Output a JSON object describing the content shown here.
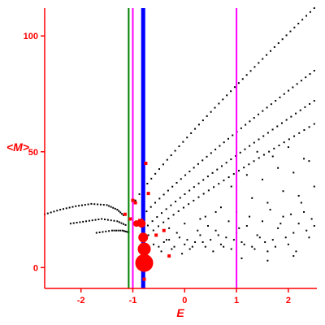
{
  "chart_data": {
    "type": "scatter",
    "title": "",
    "xlabel": "E",
    "ylabel": "<M>",
    "xlim": [
      -2.7,
      2.55
    ],
    "ylim": [
      -9,
      112
    ],
    "x_ticks": [
      -2,
      -1,
      0,
      1,
      2
    ],
    "y_ticks": [
      0,
      50,
      100
    ],
    "grid": false,
    "legend": "none",
    "colors": {
      "axis": "#ff0000",
      "points": "#000000",
      "highlight": "#ff0000",
      "line_green": "#008000",
      "line_magenta": "#ff00ff",
      "line_blue": "#0000ff"
    },
    "vertical_lines": [
      {
        "x": -1.08,
        "color": "#008000",
        "weight": "thin"
      },
      {
        "x": -1.0,
        "color": "#ff00ff",
        "weight": "thin"
      },
      {
        "x": -0.8,
        "color": "#0000ff",
        "weight": "thick"
      },
      {
        "x": 1.0,
        "color": "#ff00ff",
        "weight": "thin"
      }
    ],
    "band_series": [
      {
        "x_start": -0.95,
        "y_start": 29,
        "x_end": 2.5,
        "y_end": 112,
        "n": 46
      },
      {
        "x_start": -0.9,
        "y_start": 20,
        "x_end": 2.5,
        "y_end": 85,
        "n": 42
      },
      {
        "x_start": -0.8,
        "y_start": 16,
        "x_end": 2.5,
        "y_end": 72,
        "n": 38
      },
      {
        "x_start": -0.7,
        "y_start": 14,
        "x_end": 2.5,
        "y_end": 62,
        "n": 34
      }
    ],
    "arc_series": [
      {
        "x": [
          -2.7,
          -2.4,
          -2.1,
          -1.8,
          -1.5,
          -1.3,
          -1.15
        ],
        "y": [
          23,
          25,
          26.5,
          27.5,
          27,
          25,
          22
        ]
      },
      {
        "x": [
          -2.2,
          -1.9,
          -1.6,
          -1.3,
          -1.1
        ],
        "y": [
          19,
          20,
          21,
          20,
          18
        ]
      },
      {
        "x": [
          -1.7,
          -1.4,
          -1.2,
          -1.05
        ],
        "y": [
          15,
          16,
          16,
          15
        ]
      }
    ],
    "cloud_points": {
      "x": [
        -0.6,
        -0.5,
        -0.4,
        -0.3,
        -0.2,
        -0.1,
        0.0,
        0.1,
        0.2,
        0.3,
        0.4,
        0.5,
        0.6,
        0.7,
        0.8,
        0.9,
        1.0,
        1.1,
        1.2,
        1.3,
        1.4,
        1.5,
        1.6,
        1.7,
        1.8,
        1.9,
        2.0,
        2.1,
        2.2,
        2.3,
        2.4,
        2.5,
        -0.55,
        -0.35,
        -0.15,
        0.05,
        0.25,
        0.45,
        0.65,
        0.85,
        1.05,
        1.25,
        1.45,
        1.65,
        1.85,
        2.05,
        2.25,
        2.45,
        -0.45,
        -0.25,
        -0.05,
        0.15,
        0.35,
        0.55,
        0.75,
        0.95,
        1.15,
        1.35,
        1.55,
        1.75,
        1.95,
        2.15,
        2.35,
        0.4,
        0.7,
        1.0,
        1.3,
        1.6,
        1.9,
        2.2,
        2.5,
        0.9,
        1.2,
        1.5,
        1.8,
        2.1,
        2.4,
        1.4,
        1.7,
        2.0,
        2.3,
        -0.3,
        0.0,
        0.3,
        0.6,
        1.1,
        1.6,
        2.1
      ],
      "y": [
        10,
        9,
        11,
        12,
        9,
        13,
        10,
        8,
        11,
        14,
        9,
        12,
        16,
        10,
        13,
        8,
        15,
        11,
        18,
        9,
        14,
        20,
        7,
        12,
        17,
        22,
        10,
        15,
        19,
        24,
        13,
        18,
        14,
        12,
        15,
        12,
        16,
        18,
        14,
        20,
        17,
        22,
        13,
        25,
        19,
        23,
        28,
        21,
        7,
        8,
        6,
        9,
        11,
        7,
        9,
        12,
        10,
        8,
        11,
        9,
        13,
        7,
        16,
        22,
        26,
        24,
        30,
        28,
        33,
        31,
        35,
        35,
        40,
        38,
        43,
        41,
        46,
        50,
        48,
        52,
        47,
        17,
        19,
        21,
        24,
        4,
        3,
        5
      ]
    },
    "highlight_points": {
      "x": [
        -0.78,
        -0.78,
        -0.8,
        -0.83,
        -0.93,
        -0.85,
        -1.05,
        -0.95,
        -1.0,
        -0.75,
        -0.7,
        -0.55,
        -0.4,
        -0.3,
        -0.78,
        -1.15
      ],
      "y": [
        2,
        8,
        13,
        19,
        19,
        20,
        21,
        28,
        29,
        45,
        32,
        14,
        16,
        5,
        -5,
        23
      ],
      "size": [
        11,
        8,
        6,
        5,
        4,
        3,
        2,
        2,
        2,
        2,
        2,
        2,
        2,
        2,
        2,
        2
      ]
    }
  }
}
